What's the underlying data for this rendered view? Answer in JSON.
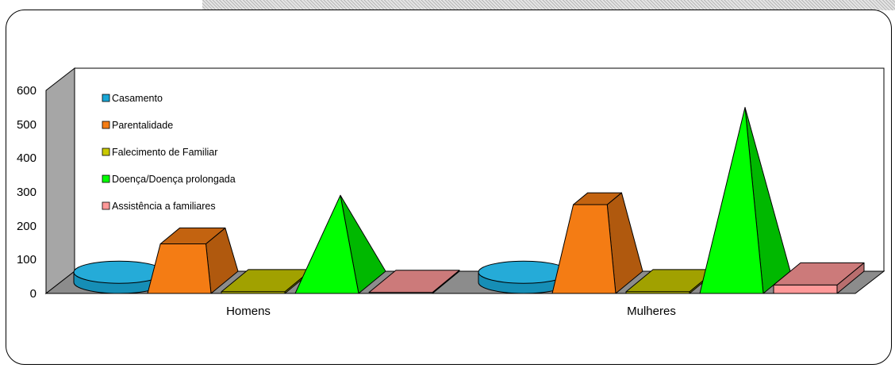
{
  "chart_data": {
    "type": "bar",
    "categories": [
      "Homens",
      "Mulheres"
    ],
    "series": [
      {
        "name": "Casamento",
        "values": [
          30,
          30
        ],
        "shape": "cylinder"
      },
      {
        "name": "Parentalidade",
        "values": [
          170,
          280
        ],
        "shape": "pyramid-frustum"
      },
      {
        "name": "Falecimento de Familiar",
        "values": [
          5,
          5
        ],
        "shape": "box"
      },
      {
        "name": "Doença/Doença prolongada",
        "values": [
          290,
          550
        ],
        "shape": "pyramid"
      },
      {
        "name": "Assistência a familiares",
        "values": [
          3,
          25
        ],
        "shape": "box"
      }
    ],
    "y_ticks": [
      "0",
      "100",
      "200",
      "300",
      "400",
      "500",
      "600"
    ],
    "ylim": [
      0,
      600
    ],
    "legend_position": "top-left",
    "colors": {
      "Casamento": "#1aa7d6",
      "Parentalidade": "#f47c14",
      "Falecimento de Familiar": "#c9c900",
      "Doença/Doença prolongada": "#00ff00",
      "Assistência a familiares": "#ff9999",
      "wall_side": "#a6a6a6",
      "floor": "#8c8c8c"
    }
  }
}
